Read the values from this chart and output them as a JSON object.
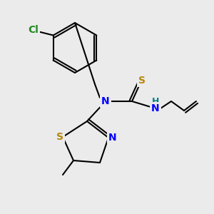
{
  "bg_color": "#ebebeb",
  "atom_colors": {
    "S": "#b8860b",
    "N": "#0000ff",
    "Cl": "#228b22",
    "H": "#008080",
    "C": "#000000"
  },
  "bond_color": "#000000",
  "figsize": [
    3.0,
    3.0
  ],
  "dpi": 100
}
